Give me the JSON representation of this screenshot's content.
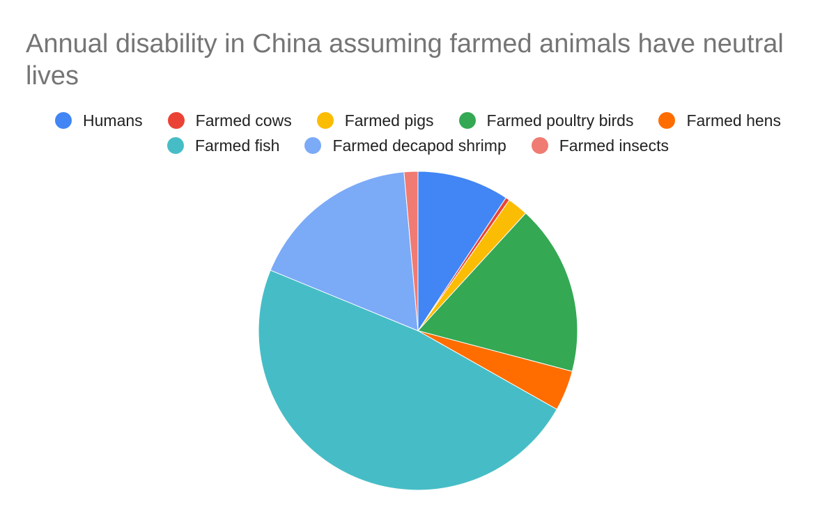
{
  "chart_data": {
    "type": "pie",
    "title": "Annual disability in China assuming farmed animals have neutral lives",
    "legend_position": "top",
    "start_angle_deg": 0,
    "direction": "clockwise",
    "slices": [
      {
        "label": "Humans",
        "value": 9.3,
        "color": "#4285F4"
      },
      {
        "label": "Farmed cows",
        "value": 0.4,
        "color": "#EA4335"
      },
      {
        "label": "Farmed pigs",
        "value": 2.1,
        "color": "#FBBC04"
      },
      {
        "label": "Farmed poultry birds",
        "value": 17.3,
        "color": "#34A853"
      },
      {
        "label": "Farmed hens",
        "value": 4.1,
        "color": "#FF6D01"
      },
      {
        "label": "Farmed fish",
        "value": 48.0,
        "color": "#46BDC6"
      },
      {
        "label": "Farmed decapod shrimp",
        "value": 17.4,
        "color": "#7BAAF7"
      },
      {
        "label": "Farmed insects",
        "value": 1.4,
        "color": "#F07B72"
      }
    ]
  }
}
